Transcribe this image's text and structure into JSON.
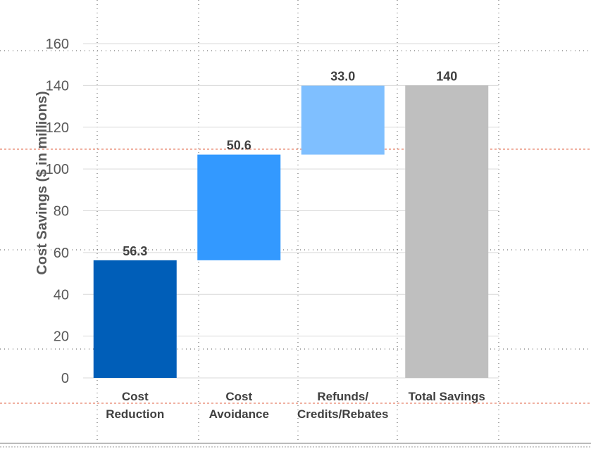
{
  "chart_data": {
    "type": "bar",
    "subtype": "waterfall",
    "ylabel": "Cost Savings ($ in millions)",
    "ylim": [
      0,
      160
    ],
    "y_ticks": [
      0,
      20,
      40,
      60,
      80,
      100,
      120,
      140,
      160
    ],
    "grid": true,
    "categories": [
      [
        "Cost",
        "Reduction"
      ],
      [
        "Cost",
        "Avoidance"
      ],
      [
        "Refunds/",
        "Credits/Rebates"
      ],
      [
        "Total Savings"
      ]
    ],
    "bars": [
      {
        "start": 0,
        "value": 56.3,
        "label": "56.3",
        "color": "#005EB8"
      },
      {
        "start": 56.3,
        "value": 50.6,
        "label": "50.6",
        "color": "#3399FF"
      },
      {
        "start": 106.9,
        "value": 33.0,
        "label": "33.0",
        "color": "#7FBFFF"
      },
      {
        "start": 0,
        "value": 140,
        "label": "140",
        "color": "#BFBFBF"
      }
    ]
  }
}
